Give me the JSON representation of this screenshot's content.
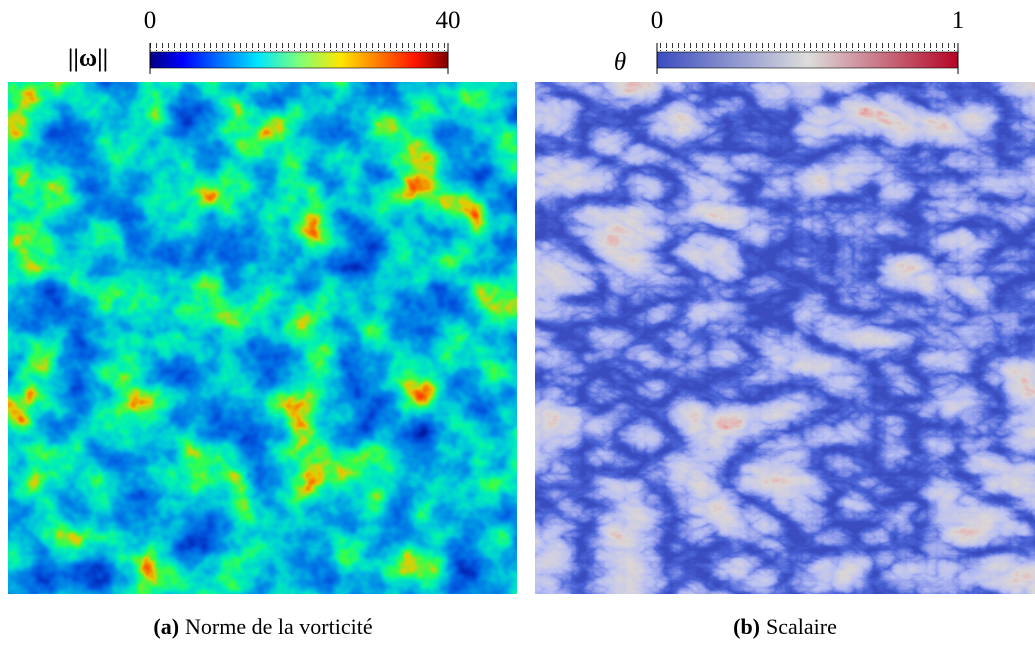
{
  "panels": [
    {
      "colorbar": {
        "label": "||ω||",
        "ticks": [
          0,
          40
        ]
      },
      "caption": {
        "label": "(a)",
        "text": "Norme de la vorticité"
      }
    },
    {
      "colorbar": {
        "label": "θ",
        "ticks": [
          0,
          1
        ]
      },
      "caption": {
        "label": "(b)",
        "text": "Scalaire"
      }
    }
  ]
}
